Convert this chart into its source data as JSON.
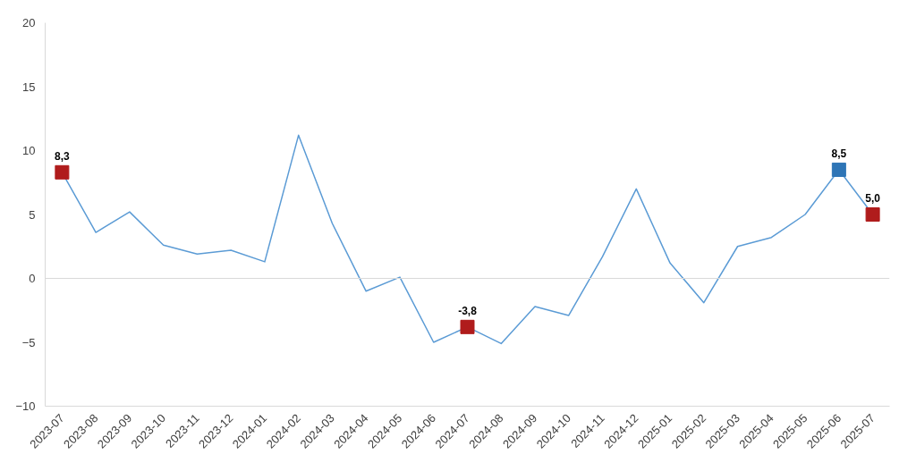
{
  "chart_data": {
    "type": "line",
    "categories": [
      "2023-07",
      "2023-08",
      "2023-09",
      "2023-10",
      "2023-11",
      "2023-12",
      "2024-01",
      "2024-02",
      "2024-03",
      "2024-04",
      "2024-05",
      "2024-06",
      "2024-07",
      "2024-08",
      "2024-09",
      "2024-10",
      "2024-11",
      "2024-12",
      "2025-01",
      "2025-02",
      "2025-03",
      "2025-04",
      "2025-05",
      "2025-06",
      "2025-07"
    ],
    "series": [
      {
        "color": "#5b9bd5",
        "values": [
          8.3,
          3.6,
          5.2,
          2.6,
          1.9,
          2.2,
          1.3,
          11.2,
          4.3,
          -1.0,
          0.1,
          -5.0,
          -3.8,
          -5.1,
          -2.2,
          -2.9,
          1.7,
          7.0,
          1.2,
          -1.9,
          2.5,
          3.2,
          5.0,
          8.5,
          5.0
        ]
      },
      {
        "type": "scatter",
        "marker": "square",
        "color": "#b01c1c",
        "values": [
          8.3,
          null,
          null,
          null,
          null,
          null,
          null,
          null,
          null,
          null,
          null,
          null,
          -3.8,
          null,
          null,
          null,
          null,
          null,
          null,
          null,
          null,
          null,
          null,
          null,
          5.0
        ],
        "value_labels": [
          "8,3",
          null,
          null,
          null,
          null,
          null,
          null,
          null,
          null,
          null,
          null,
          null,
          "-3,8",
          null,
          null,
          null,
          null,
          null,
          null,
          null,
          null,
          null,
          null,
          null,
          "5,0"
        ]
      },
      {
        "type": "scatter",
        "marker": "square",
        "color": "#2e75b6",
        "values": [
          null,
          null,
          null,
          null,
          null,
          null,
          null,
          null,
          null,
          null,
          null,
          null,
          null,
          null,
          null,
          null,
          null,
          null,
          null,
          null,
          null,
          null,
          null,
          8.5,
          null
        ],
        "value_labels": [
          null,
          null,
          null,
          null,
          null,
          null,
          null,
          null,
          null,
          null,
          null,
          null,
          null,
          null,
          null,
          null,
          null,
          null,
          null,
          null,
          null,
          null,
          null,
          "8,5",
          null
        ]
      }
    ],
    "ylim": [
      -10,
      20
    ],
    "yticks": [
      -10,
      -5,
      0,
      5,
      10,
      15,
      20
    ],
    "grid": false,
    "ref_lines": [
      {
        "axis": "y",
        "value": 0,
        "color": "#d9d9d9"
      }
    ]
  }
}
